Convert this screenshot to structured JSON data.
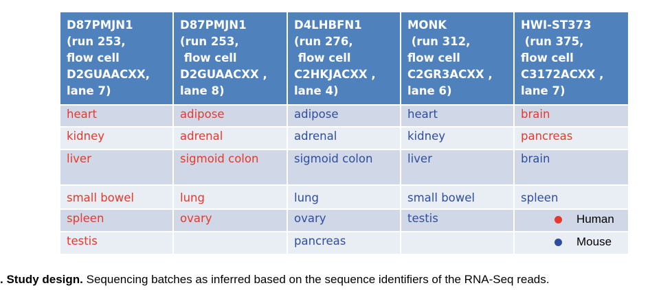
{
  "colors": {
    "header_bg": "#4f81bd",
    "human": "#e8382b",
    "mouse": "#2e4da0",
    "row_dark": "#d0d8e8",
    "row_light": "#e9edf4"
  },
  "table": {
    "headers": [
      "D87PMJN1\n(run 253,\nflow cell\nD2GUAACXX,\nlane 7)",
      "D87PMJN1\n(run 253,\n flow cell\nD2GUAACXX ,\nlane 8)",
      "D4LHBFN1\n(run 276,\n flow cell\nC2HKJACXX ,\nlane 4)",
      "MONK\n (run 312,\nflow cell\nC2GR3ACXX ,\nlane 6)",
      "HWI-ST373\n (run 375,\nflow cell\nC3172ACXX ,\nlane 7)"
    ],
    "rows": [
      [
        {
          "text": "heart",
          "species": "human"
        },
        {
          "text": "adipose",
          "species": "human"
        },
        {
          "text": "adipose",
          "species": "mouse"
        },
        {
          "text": "heart",
          "species": "mouse"
        },
        {
          "text": "brain",
          "species": "human"
        }
      ],
      [
        {
          "text": "kidney",
          "species": "human"
        },
        {
          "text": "adrenal",
          "species": "human"
        },
        {
          "text": "adrenal",
          "species": "mouse"
        },
        {
          "text": "kidney",
          "species": "mouse"
        },
        {
          "text": "pancreas",
          "species": "human"
        }
      ],
      [
        {
          "text": "liver",
          "species": "human"
        },
        {
          "text": "sigmoid colon",
          "species": "human"
        },
        {
          "text": "sigmoid colon",
          "species": "mouse"
        },
        {
          "text": "liver",
          "species": "mouse"
        },
        {
          "text": "brain",
          "species": "mouse"
        }
      ],
      [
        {
          "text": "small bowel",
          "species": "human"
        },
        {
          "text": "lung",
          "species": "human"
        },
        {
          "text": "lung",
          "species": "mouse"
        },
        {
          "text": "small bowel",
          "species": "mouse"
        },
        {
          "text": "spleen",
          "species": "mouse"
        }
      ],
      [
        {
          "text": "spleen",
          "species": "human"
        },
        {
          "text": "ovary",
          "species": "human"
        },
        {
          "text": "ovary",
          "species": "mouse"
        },
        {
          "text": "testis",
          "species": "mouse"
        },
        {
          "text": "",
          "species": ""
        }
      ],
      [
        {
          "text": "testis",
          "species": "human"
        },
        {
          "text": "",
          "species": ""
        },
        {
          "text": "pancreas",
          "species": "mouse"
        },
        {
          "text": "",
          "species": ""
        },
        {
          "text": "",
          "species": ""
        }
      ]
    ]
  },
  "legend": {
    "human_label": "Human",
    "mouse_label": "Mouse"
  },
  "caption": {
    "prefix": ". Study design.",
    "text": " Sequencing batches as inferred based on the sequence identifiers of the RNA-Seq reads."
  }
}
